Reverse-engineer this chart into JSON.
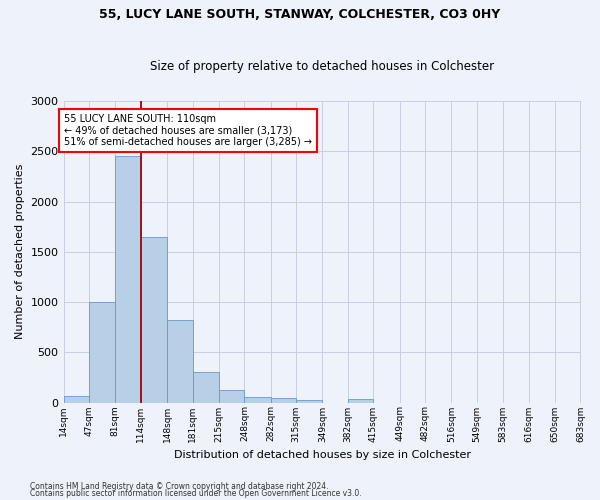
{
  "title1": "55, LUCY LANE SOUTH, STANWAY, COLCHESTER, CO3 0HY",
  "title2": "Size of property relative to detached houses in Colchester",
  "xlabel": "Distribution of detached houses by size in Colchester",
  "ylabel": "Number of detached properties",
  "bar_values": [
    60,
    1000,
    2450,
    1650,
    820,
    300,
    120,
    50,
    40,
    25,
    0,
    30,
    0,
    0,
    0,
    0,
    0,
    0,
    0,
    0
  ],
  "bin_edges": [
    14,
    47,
    81,
    114,
    148,
    181,
    215,
    248,
    282,
    315,
    349,
    382,
    415,
    449,
    482,
    516,
    549,
    583,
    616,
    650,
    683
  ],
  "bar_color": "#b8cfe8",
  "bar_edge_color": "#6699cc",
  "property_line_x": 114,
  "annotation_text": "55 LUCY LANE SOUTH: 110sqm\n← 49% of detached houses are smaller (3,173)\n51% of semi-detached houses are larger (3,285) →",
  "annotation_box_color": "white",
  "annotation_box_edge_color": "red",
  "vline_color": "#aa0000",
  "ylim": [
    0,
    3000
  ],
  "yticks": [
    0,
    500,
    1000,
    1500,
    2000,
    2500,
    3000
  ],
  "tick_labels": [
    "14sqm",
    "47sqm",
    "81sqm",
    "114sqm",
    "148sqm",
    "181sqm",
    "215sqm",
    "248sqm",
    "282sqm",
    "315sqm",
    "349sqm",
    "382sqm",
    "415sqm",
    "449sqm",
    "482sqm",
    "516sqm",
    "549sqm",
    "583sqm",
    "616sqm",
    "650sqm",
    "683sqm"
  ],
  "footer1": "Contains HM Land Registry data © Crown copyright and database right 2024.",
  "footer2": "Contains public sector information licensed under the Open Government Licence v3.0.",
  "bg_color": "#eef2fa",
  "grid_color": "#c5cfe0"
}
